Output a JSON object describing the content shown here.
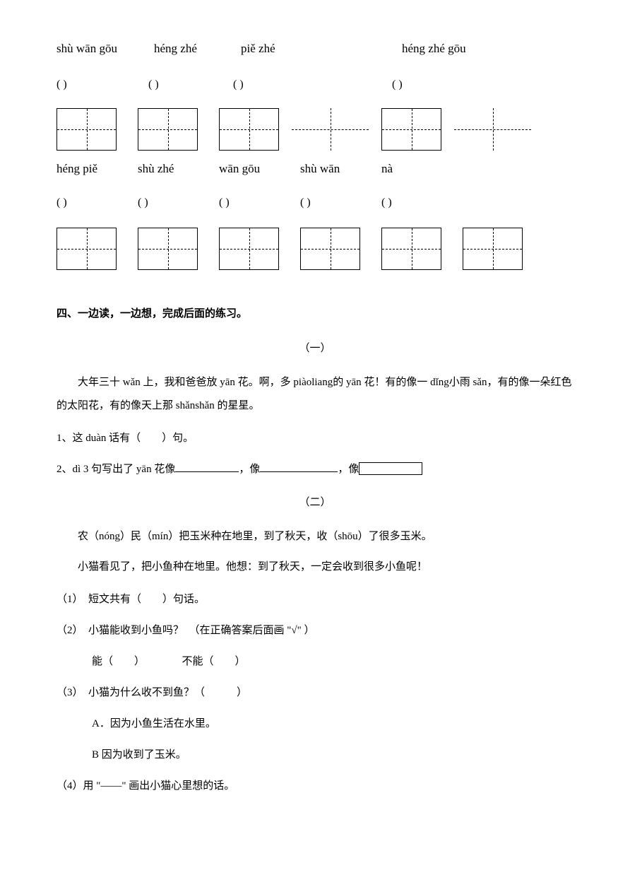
{
  "row1_pinyin": {
    "p1": "shù wān gōu",
    "p2": "héng zhé",
    "p3": "piě zhé",
    "p4": "héng zhé gōu"
  },
  "row1_paren": {
    "b1": "(                )",
    "b2": "(                )",
    "b3": "(                )",
    "b4": "(                      )"
  },
  "row2_pinyin": {
    "p1": "héng piě",
    "p2": "shù zhé",
    "p3": "wān gōu",
    "p4": "shù wān",
    "p5": "nà"
  },
  "row2_paren": {
    "b1": "(           )",
    "b2": "(           )",
    "b3": "(           )",
    "b4": "(           )",
    "b5": "(      )"
  },
  "grids": {
    "row1": [
      {
        "bordered": true
      },
      {
        "bordered": true
      },
      {
        "bordered": true
      },
      {
        "bordered": false
      },
      {
        "bordered": true
      },
      {
        "bordered": false
      }
    ],
    "row2": [
      {
        "bordered": true
      },
      {
        "bordered": true
      },
      {
        "bordered": true
      },
      {
        "bordered": true
      },
      {
        "bordered": true
      },
      {
        "bordered": true
      }
    ]
  },
  "section4_title": "四、一边读，一边想，完成后面的练习。",
  "passage1": {
    "title": "（一）",
    "text": "大年三十 wǎn 上，我和爸爸放 yān 花。啊，多 piàoliang的 yān 花！有的像一 dǐng小雨 sǎn，有的像一朵红色的太阳花，有的像天上那 shǎnshǎn 的星星。",
    "q1": "1、这 duàn 话有（　　）句。",
    "q2_pre": "2、dì 3 句写出了 yān 花像",
    "q2_mid1": "，像",
    "q2_mid2": "，像"
  },
  "passage2": {
    "title": "（二）",
    "line1": "农（nóng）民（mín）把玉米种在地里，到了秋天，收（shōu）了很多玉米。",
    "line2": "小猫看见了，把小鱼种在地里。他想：到了秋天，一定会收到很多小鱼呢！",
    "q1": "（1）　短文共有（　　）句话。",
    "q2": "（2）　小猫能收到小鱼吗？　（在正确答案后面画 \"√\" ）",
    "q2_options": "能（　　）　　　　不能（　　）",
    "q3": "（3）　小猫为什么收不到鱼？（　　　）",
    "q3_a": "A．因为小鱼生活在水里。",
    "q3_b": "B 因为收到了玉米。",
    "q4": "（4）用 \"——\" 画出小猫心里想的话。"
  },
  "colors": {
    "text": "#000000",
    "bg": "#ffffff"
  }
}
